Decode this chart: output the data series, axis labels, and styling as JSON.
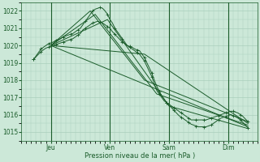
{
  "xlabel": "Pression niveau de la mer( hPa )",
  "ylim": [
    1014.5,
    1022.5
  ],
  "yticks": [
    1015,
    1016,
    1017,
    1018,
    1019,
    1020,
    1021,
    1022
  ],
  "day_labels": [
    "Jeu",
    "Ven",
    "Sam",
    "Dim"
  ],
  "day_positions": [
    12,
    36,
    60,
    84
  ],
  "xlim": [
    0,
    96
  ],
  "background_color": "#cce8d8",
  "grid_color": "#aacfbc",
  "line_color": "#1a5c2a",
  "detailed_marker_every": 3,
  "detailed_series": [
    {
      "x_start": 5,
      "x_end": 92,
      "points": [
        [
          5,
          1019.2
        ],
        [
          6,
          1019.4
        ],
        [
          7,
          1019.6
        ],
        [
          8,
          1019.8
        ],
        [
          9,
          1019.9
        ],
        [
          10,
          1020.0
        ],
        [
          11,
          1020.1
        ],
        [
          12,
          1020.15
        ],
        [
          13,
          1020.2
        ],
        [
          14,
          1020.3
        ],
        [
          15,
          1020.35
        ],
        [
          16,
          1020.4
        ],
        [
          17,
          1020.5
        ],
        [
          18,
          1020.55
        ],
        [
          19,
          1020.6
        ],
        [
          20,
          1020.65
        ],
        [
          21,
          1020.7
        ],
        [
          22,
          1020.8
        ],
        [
          23,
          1020.9
        ],
        [
          24,
          1021.0
        ],
        [
          25,
          1021.2
        ],
        [
          26,
          1021.4
        ],
        [
          27,
          1021.6
        ],
        [
          28,
          1021.8
        ],
        [
          29,
          1022.0
        ],
        [
          30,
          1022.1
        ],
        [
          31,
          1022.15
        ],
        [
          32,
          1022.2
        ],
        [
          33,
          1022.15
        ],
        [
          34,
          1022.0
        ],
        [
          35,
          1021.8
        ],
        [
          36,
          1021.5
        ],
        [
          37,
          1021.3
        ],
        [
          38,
          1021.0
        ],
        [
          39,
          1020.8
        ],
        [
          40,
          1020.6
        ],
        [
          41,
          1020.4
        ],
        [
          42,
          1020.2
        ],
        [
          43,
          1020.0
        ],
        [
          44,
          1019.9
        ],
        [
          45,
          1019.8
        ],
        [
          46,
          1019.7
        ],
        [
          47,
          1019.6
        ],
        [
          48,
          1019.5
        ],
        [
          49,
          1019.3
        ],
        [
          50,
          1019.1
        ],
        [
          51,
          1018.8
        ],
        [
          52,
          1018.5
        ],
        [
          53,
          1018.2
        ],
        [
          54,
          1017.8
        ],
        [
          55,
          1017.4
        ],
        [
          56,
          1017.2
        ],
        [
          57,
          1017.0
        ],
        [
          58,
          1016.8
        ],
        [
          59,
          1016.7
        ],
        [
          60,
          1016.6
        ],
        [
          61,
          1016.5
        ],
        [
          62,
          1016.4
        ],
        [
          63,
          1016.3
        ],
        [
          64,
          1016.2
        ],
        [
          65,
          1016.1
        ],
        [
          66,
          1016.0
        ],
        [
          67,
          1015.9
        ],
        [
          68,
          1015.8
        ],
        [
          69,
          1015.7
        ],
        [
          70,
          1015.7
        ],
        [
          71,
          1015.7
        ],
        [
          72,
          1015.7
        ],
        [
          73,
          1015.7
        ],
        [
          74,
          1015.7
        ],
        [
          75,
          1015.7
        ],
        [
          76,
          1015.75
        ],
        [
          77,
          1015.8
        ],
        [
          78,
          1015.85
        ],
        [
          79,
          1015.9
        ],
        [
          80,
          1015.95
        ],
        [
          81,
          1016.0
        ],
        [
          82,
          1016.05
        ],
        [
          83,
          1016.1
        ],
        [
          84,
          1016.15
        ],
        [
          85,
          1016.2
        ],
        [
          86,
          1016.2
        ],
        [
          87,
          1016.15
        ],
        [
          88,
          1016.1
        ],
        [
          89,
          1016.0
        ],
        [
          90,
          1015.9
        ],
        [
          91,
          1015.75
        ],
        [
          92,
          1015.6
        ]
      ]
    },
    {
      "x_start": 5,
      "x_end": 92,
      "points": [
        [
          5,
          1019.2
        ],
        [
          6,
          1019.35
        ],
        [
          7,
          1019.5
        ],
        [
          8,
          1019.65
        ],
        [
          9,
          1019.75
        ],
        [
          10,
          1019.85
        ],
        [
          11,
          1019.9
        ],
        [
          12,
          1019.95
        ],
        [
          13,
          1020.0
        ],
        [
          14,
          1020.05
        ],
        [
          15,
          1020.1
        ],
        [
          16,
          1020.15
        ],
        [
          17,
          1020.2
        ],
        [
          18,
          1020.25
        ],
        [
          19,
          1020.3
        ],
        [
          20,
          1020.35
        ],
        [
          21,
          1020.4
        ],
        [
          22,
          1020.5
        ],
        [
          23,
          1020.6
        ],
        [
          24,
          1020.7
        ],
        [
          25,
          1020.9
        ],
        [
          26,
          1021.0
        ],
        [
          27,
          1021.1
        ],
        [
          28,
          1021.2
        ],
        [
          29,
          1021.3
        ],
        [
          30,
          1021.35
        ],
        [
          31,
          1021.4
        ],
        [
          32,
          1021.35
        ],
        [
          33,
          1021.3
        ],
        [
          34,
          1021.2
        ],
        [
          35,
          1021.1
        ],
        [
          36,
          1021.0
        ],
        [
          37,
          1020.8
        ],
        [
          38,
          1020.65
        ],
        [
          39,
          1020.5
        ],
        [
          40,
          1020.35
        ],
        [
          41,
          1020.2
        ],
        [
          42,
          1020.1
        ],
        [
          43,
          1020.0
        ],
        [
          44,
          1019.95
        ],
        [
          45,
          1019.9
        ],
        [
          46,
          1019.8
        ],
        [
          47,
          1019.75
        ],
        [
          48,
          1019.7
        ],
        [
          49,
          1019.5
        ],
        [
          50,
          1019.3
        ],
        [
          51,
          1019.0
        ],
        [
          52,
          1018.7
        ],
        [
          53,
          1018.4
        ],
        [
          54,
          1018.0
        ],
        [
          55,
          1017.65
        ],
        [
          56,
          1017.35
        ],
        [
          57,
          1017.1
        ],
        [
          58,
          1016.9
        ],
        [
          59,
          1016.7
        ],
        [
          60,
          1016.55
        ],
        [
          61,
          1016.4
        ],
        [
          62,
          1016.25
        ],
        [
          63,
          1016.1
        ],
        [
          64,
          1015.95
        ],
        [
          65,
          1015.85
        ],
        [
          66,
          1015.75
        ],
        [
          67,
          1015.65
        ],
        [
          68,
          1015.55
        ],
        [
          69,
          1015.45
        ],
        [
          70,
          1015.4
        ],
        [
          71,
          1015.35
        ],
        [
          72,
          1015.3
        ],
        [
          73,
          1015.3
        ],
        [
          74,
          1015.3
        ],
        [
          75,
          1015.3
        ],
        [
          76,
          1015.35
        ],
        [
          77,
          1015.4
        ],
        [
          78,
          1015.5
        ],
        [
          79,
          1015.6
        ],
        [
          80,
          1015.7
        ],
        [
          81,
          1015.8
        ],
        [
          82,
          1015.85
        ],
        [
          83,
          1015.9
        ],
        [
          84,
          1015.95
        ],
        [
          85,
          1016.0
        ],
        [
          86,
          1015.95
        ],
        [
          87,
          1015.9
        ],
        [
          88,
          1015.8
        ],
        [
          89,
          1015.7
        ],
        [
          90,
          1015.55
        ],
        [
          91,
          1015.4
        ],
        [
          92,
          1015.25
        ]
      ]
    }
  ],
  "straight_series": [
    {
      "x": [
        12,
        92
      ],
      "y": [
        1020.0,
        1015.3
      ]
    },
    {
      "x": [
        12,
        50,
        92
      ],
      "y": [
        1020.0,
        1019.5,
        1015.5
      ]
    },
    {
      "x": [
        12,
        35,
        60,
        92
      ],
      "y": [
        1020.0,
        1021.5,
        1016.5,
        1015.2
      ]
    },
    {
      "x": [
        12,
        30,
        55,
        92
      ],
      "y": [
        1020.0,
        1021.8,
        1017.2,
        1015.4
      ]
    },
    {
      "x": [
        12,
        28,
        50,
        92
      ],
      "y": [
        1020.0,
        1022.0,
        1018.0,
        1015.6
      ]
    }
  ]
}
